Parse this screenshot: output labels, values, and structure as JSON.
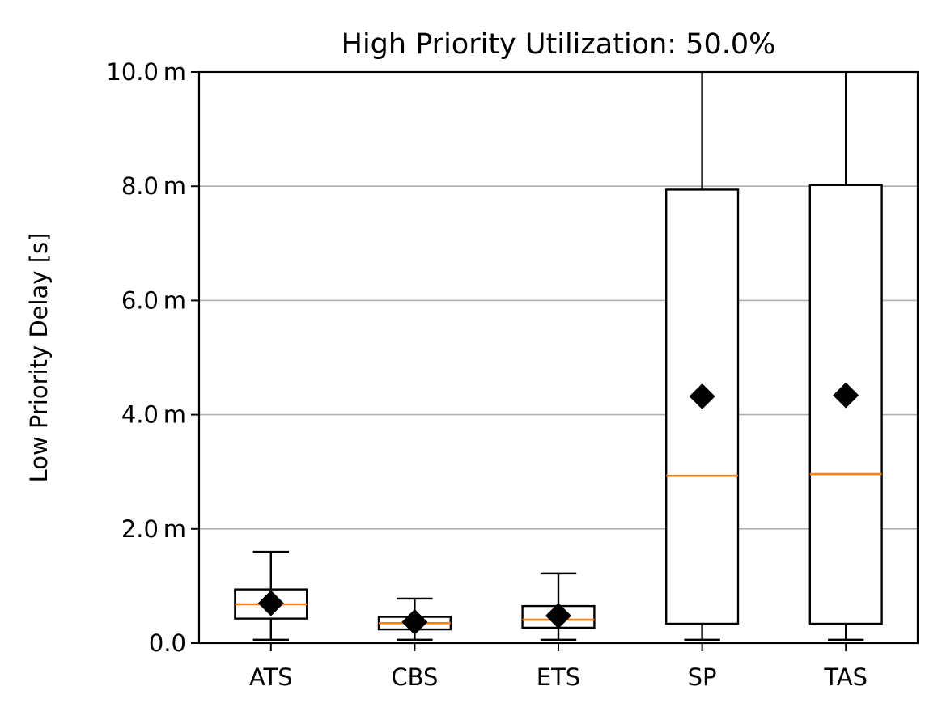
{
  "chart_data": {
    "type": "box",
    "title": "High Priority Utilization: 50.0%",
    "xlabel": "",
    "ylabel": "Low Priority Delay [s]",
    "ylim": [
      0,
      10
    ],
    "y_unit_suffix": "m",
    "y_ticks": [
      0,
      2,
      4,
      6,
      8,
      10
    ],
    "y_tick_labels": [
      "0.0",
      "2.0 m",
      "4.0 m",
      "6.0 m",
      "8.0 m",
      "10.0 m"
    ],
    "grid": "y",
    "categories": [
      "ATS",
      "CBS",
      "ETS",
      "SP",
      "TAS"
    ],
    "boxes": [
      {
        "label": "ATS",
        "whisker_low": 0.06,
        "q1": 0.43,
        "median": 0.68,
        "q3": 0.94,
        "whisker_high": 1.6,
        "mean": 0.7
      },
      {
        "label": "CBS",
        "whisker_low": 0.06,
        "q1": 0.24,
        "median": 0.35,
        "q3": 0.46,
        "whisker_high": 0.78,
        "mean": 0.37
      },
      {
        "label": "ETS",
        "whisker_low": 0.06,
        "q1": 0.27,
        "median": 0.41,
        "q3": 0.65,
        "whisker_high": 1.22,
        "mean": 0.48
      },
      {
        "label": "SP",
        "whisker_low": 0.06,
        "q1": 0.34,
        "median": 2.93,
        "q3": 7.94,
        "whisker_high": 10.5,
        "mean": 4.32
      },
      {
        "label": "TAS",
        "whisker_low": 0.06,
        "q1": 0.34,
        "median": 2.96,
        "q3": 8.02,
        "whisker_high": 10.5,
        "mean": 4.34
      }
    ],
    "colors": {
      "box": "#000000",
      "median": "#ff7f0e",
      "mean": "#000000",
      "grid": "#b0b0b0"
    }
  }
}
